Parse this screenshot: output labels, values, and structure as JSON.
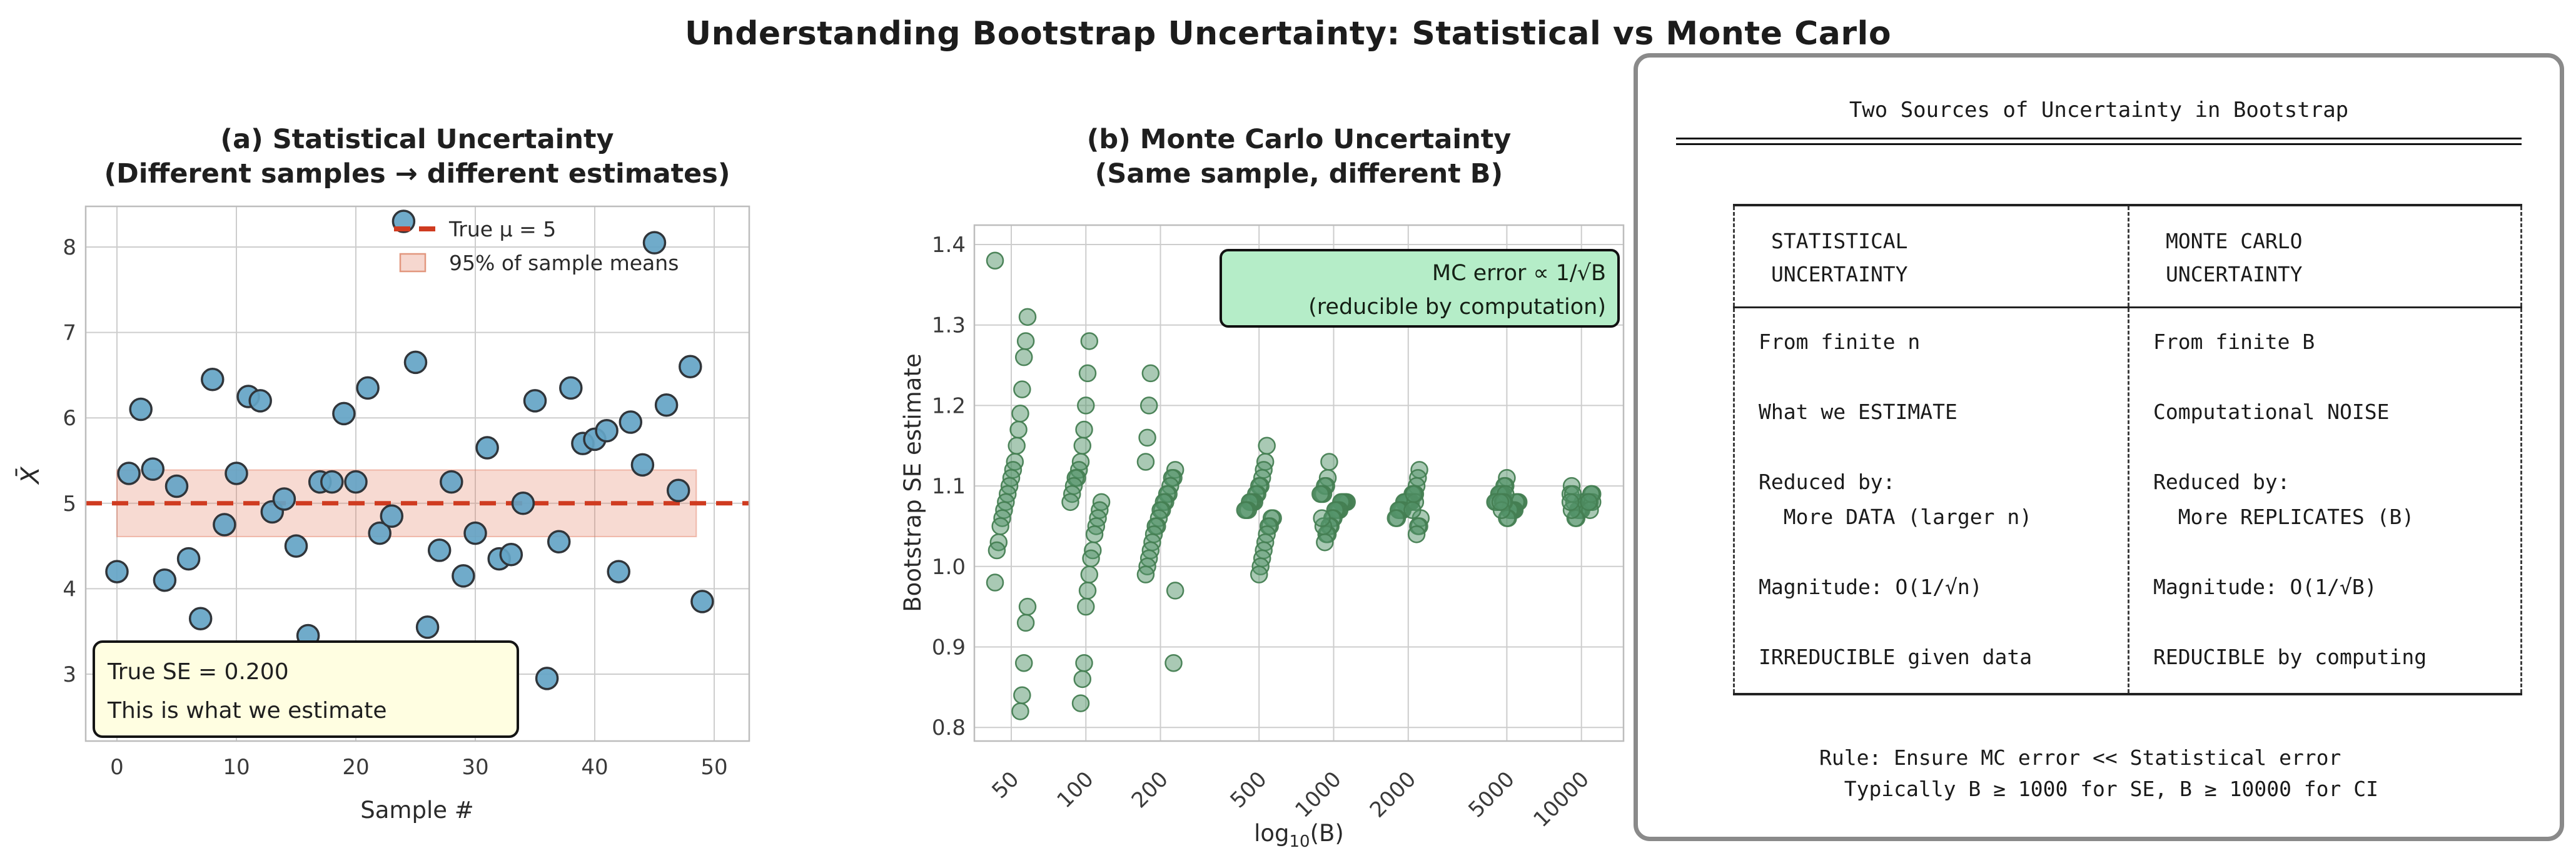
{
  "page": {
    "title": "Understanding Bootstrap Uncertainty: Statistical vs Monte Carlo",
    "background": "#ffffff"
  },
  "colors": {
    "blue_point": "#64a4c6",
    "blue_edge": "#30353a",
    "red_line": "#cf3b20",
    "band_fill": "#e2795f",
    "green_point": "#53946a",
    "green_edge": "#447e52",
    "green_box": "#b5edc8",
    "yellow_box": "#fffee1",
    "grid": "#cdcdcd",
    "spine": "#bdbdbd",
    "panel_border": "#8a8a8a"
  },
  "chart_data": [
    {
      "type": "scatter",
      "panel": "a",
      "title_line1": "(a) Statistical Uncertainty",
      "title_line2": "(Different samples → different estimates)",
      "xlabel": "Sample #",
      "ylabel": "X̄",
      "xticks": [
        0,
        10,
        20,
        30,
        40,
        50
      ],
      "yticks": [
        3,
        4,
        5,
        6,
        7,
        8
      ],
      "xlim": [
        -2.6,
        52.9
      ],
      "ylim": [
        2.2,
        8.5
      ],
      "grid": true,
      "true_mu": 5,
      "band": {
        "lo": 4.61,
        "hi": 5.39,
        "x0": 0,
        "x1": 48.5
      },
      "x": [
        0,
        1,
        2,
        3,
        4,
        5,
        6,
        7,
        8,
        9,
        10,
        11,
        12,
        13,
        14,
        15,
        16,
        17,
        18,
        19,
        20,
        21,
        22,
        23,
        24,
        25,
        26,
        27,
        28,
        29,
        30,
        31,
        32,
        33,
        34,
        35,
        36,
        37,
        38,
        39,
        40,
        41,
        42,
        43,
        44,
        45,
        46,
        47,
        48,
        49
      ],
      "y": [
        4.2,
        5.35,
        6.1,
        5.4,
        4.1,
        5.2,
        4.35,
        3.65,
        6.45,
        4.75,
        5.35,
        6.25,
        6.2,
        4.9,
        5.05,
        4.5,
        3.45,
        5.25,
        5.25,
        6.05,
        5.25,
        6.35,
        4.65,
        4.85,
        8.3,
        6.65,
        3.55,
        4.45,
        5.25,
        4.15,
        4.65,
        5.65,
        4.35,
        4.4,
        5.0,
        6.2,
        2.95,
        4.55,
        6.35,
        5.7,
        5.75,
        5.85,
        4.2,
        5.95,
        5.45,
        8.05,
        6.15,
        5.15,
        6.6,
        3.85
      ],
      "legend": [
        {
          "label": "True μ = 5"
        },
        {
          "label": "95% of sample means"
        }
      ],
      "annotation": {
        "line1": "True SE = 0.200",
        "line2": "This is what we estimate"
      }
    },
    {
      "type": "scatter",
      "panel": "b",
      "title_line1": "(b) Monte Carlo Uncertainty",
      "title_line2": "(Same sample, different B)",
      "xlabel_prefix": "log",
      "xlabel_sub": "10",
      "xlabel_suffix": "(B)",
      "ylabel": "Bootstrap SE estimate",
      "yticks": [
        0.8,
        0.9,
        1.0,
        1.1,
        1.2,
        1.3,
        1.4
      ],
      "ylim": [
        0.78,
        1.42
      ],
      "grid": true,
      "categories": [
        50,
        100,
        200,
        500,
        1000,
        2000,
        5000,
        10000
      ],
      "values": [
        [
          1.38,
          1.31,
          1.28,
          1.26,
          1.22,
          1.19,
          1.17,
          1.15,
          1.13,
          1.12,
          1.11,
          1.1,
          1.09,
          1.08,
          1.07,
          1.06,
          1.05,
          1.03,
          1.02,
          0.98,
          0.95,
          0.93,
          0.88,
          0.84,
          0.82
        ],
        [
          1.28,
          1.24,
          1.2,
          1.17,
          1.15,
          1.13,
          1.12,
          1.11,
          1.11,
          1.1,
          1.09,
          1.08,
          1.08,
          1.07,
          1.06,
          1.05,
          1.04,
          1.02,
          1.01,
          0.99,
          0.97,
          0.95,
          0.88,
          0.86,
          0.83
        ],
        [
          1.24,
          1.2,
          1.16,
          1.13,
          1.12,
          1.11,
          1.11,
          1.1,
          1.09,
          1.09,
          1.08,
          1.08,
          1.07,
          1.07,
          1.06,
          1.05,
          1.05,
          1.04,
          1.03,
          1.02,
          1.01,
          1.0,
          0.99,
          0.97,
          0.88
        ],
        [
          1.15,
          1.13,
          1.12,
          1.11,
          1.1,
          1.1,
          1.09,
          1.09,
          1.08,
          1.08,
          1.08,
          1.08,
          1.07,
          1.07,
          1.07,
          1.06,
          1.06,
          1.05,
          1.05,
          1.04,
          1.03,
          1.02,
          1.01,
          1.0,
          0.99
        ],
        [
          1.13,
          1.11,
          1.1,
          1.1,
          1.09,
          1.09,
          1.09,
          1.08,
          1.08,
          1.08,
          1.08,
          1.08,
          1.07,
          1.07,
          1.07,
          1.07,
          1.06,
          1.06,
          1.05,
          1.05,
          1.04,
          1.04,
          1.03,
          1.05,
          1.06
        ],
        [
          1.12,
          1.11,
          1.1,
          1.09,
          1.09,
          1.09,
          1.08,
          1.08,
          1.08,
          1.08,
          1.08,
          1.08,
          1.07,
          1.07,
          1.07,
          1.07,
          1.06,
          1.06,
          1.06,
          1.05,
          1.05,
          1.04,
          1.08,
          1.09,
          1.07
        ],
        [
          1.11,
          1.1,
          1.1,
          1.09,
          1.09,
          1.09,
          1.09,
          1.08,
          1.08,
          1.08,
          1.08,
          1.08,
          1.08,
          1.07,
          1.07,
          1.07,
          1.07,
          1.07,
          1.06,
          1.06,
          1.09,
          1.08,
          1.08,
          1.07,
          1.08
        ],
        [
          1.1,
          1.09,
          1.09,
          1.09,
          1.08,
          1.08,
          1.08,
          1.08,
          1.08,
          1.08,
          1.08,
          1.07,
          1.07,
          1.07,
          1.07,
          1.06,
          1.06,
          1.08,
          1.09,
          1.07,
          1.08,
          1.08,
          1.09,
          1.07,
          1.08
        ]
      ],
      "annotation": {
        "line1": "MC error ∝ 1/√B",
        "line2": "(reducible by computation)"
      }
    }
  ],
  "info_panel": {
    "title": "Two Sources of Uncertainty in Bootstrap",
    "table": {
      "header_left": "STATISTICAL\nUNCERTAINTY",
      "header_right": "MONTE CARLO\nUNCERTAINTY",
      "body_left": "From finite n\n\nWhat we ESTIMATE\n\nReduced by:\n  More DATA (larger n)\n\nMagnitude: O(1/√n)\n\nIRREDUCIBLE given data",
      "body_right": "From finite B\n\nComputational NOISE\n\nReduced by:\n  More REPLICATES (B)\n\nMagnitude: O(1/√B)\n\nREDUCIBLE by computing"
    },
    "footer": "Rule: Ensure MC error << Statistical error\n  Typically B ≥ 1000 for SE, B ≥ 10000 for CI"
  }
}
